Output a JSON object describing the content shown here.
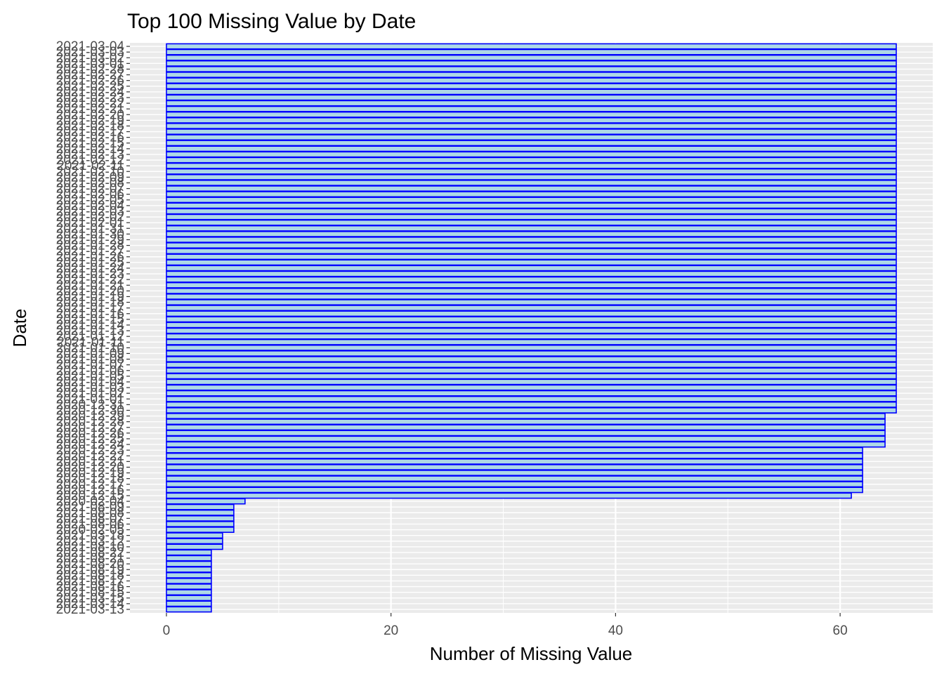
{
  "chart_data": {
    "type": "bar",
    "orientation": "horizontal",
    "title": "Top 100 Missing Value by Date",
    "xlabel": "Number of Missing Value",
    "ylabel": "Date",
    "xlim": [
      -3.25,
      68.25
    ],
    "x_ticks": [
      0,
      20,
      40,
      60
    ],
    "grid": true,
    "legend": "none",
    "colors": {
      "fill": "#add8e6",
      "outline": "#0000ff",
      "panel": "#ebebeb",
      "grid": "#ffffff"
    },
    "categories": [
      "2021-03-04",
      "2021-03-03",
      "2021-03-02",
      "2021-03-01",
      "2021-02-28",
      "2021-02-27",
      "2021-02-26",
      "2021-02-25",
      "2021-02-24",
      "2021-02-23",
      "2021-02-22",
      "2021-02-21",
      "2021-02-20",
      "2021-02-19",
      "2021-02-18",
      "2021-02-17",
      "2021-02-16",
      "2021-02-15",
      "2021-02-14",
      "2021-02-13",
      "2021-02-12",
      "2021-02-11",
      "2021-02-10",
      "2021-02-09",
      "2021-02-08",
      "2021-02-07",
      "2021-02-06",
      "2021-02-05",
      "2021-02-04",
      "2021-02-03",
      "2021-02-02",
      "2021-02-01",
      "2021-01-31",
      "2021-01-30",
      "2021-01-29",
      "2021-01-28",
      "2021-01-27",
      "2021-01-26",
      "2021-01-25",
      "2021-01-24",
      "2021-01-23",
      "2021-01-22",
      "2021-01-21",
      "2021-01-20",
      "2021-01-19",
      "2021-01-18",
      "2021-01-17",
      "2021-01-16",
      "2021-01-15",
      "2021-01-14",
      "2021-01-13",
      "2021-01-12",
      "2021-01-11",
      "2021-01-10",
      "2021-01-09",
      "2021-01-08",
      "2021-01-07",
      "2021-01-06",
      "2021-01-05",
      "2021-01-04",
      "2021-01-03",
      "2021-01-02",
      "2021-01-01",
      "2020-12-31",
      "2020-12-30",
      "2020-12-29",
      "2020-12-28",
      "2020-12-27",
      "2020-12-26",
      "2020-12-25",
      "2020-12-24",
      "2020-12-23",
      "2020-12-22",
      "2020-12-21",
      "2020-12-20",
      "2020-12-19",
      "2020-12-18",
      "2020-12-17",
      "2020-12-16",
      "2020-12-15",
      "2020-02-04",
      "2021-08-09",
      "2021-08-08",
      "2021-08-07",
      "2021-08-06",
      "2020-02-05",
      "2021-03-18",
      "2021-03-12",
      "2021-08-10",
      "2021-08-22",
      "2021-08-21",
      "2021-08-20",
      "2021-08-19",
      "2021-08-18",
      "2021-08-17",
      "2021-08-16",
      "2021-08-15",
      "2021-03-15",
      "2021-03-14",
      "2021-03-13"
    ],
    "values": [
      65,
      65,
      65,
      65,
      65,
      65,
      65,
      65,
      65,
      65,
      65,
      65,
      65,
      65,
      65,
      65,
      65,
      65,
      65,
      65,
      65,
      65,
      65,
      65,
      65,
      65,
      65,
      65,
      65,
      65,
      65,
      65,
      65,
      65,
      65,
      65,
      65,
      65,
      65,
      65,
      65,
      65,
      65,
      65,
      65,
      65,
      65,
      65,
      65,
      65,
      65,
      65,
      65,
      65,
      65,
      65,
      65,
      65,
      65,
      65,
      65,
      65,
      65,
      65,
      65,
      64,
      64,
      64,
      64,
      64,
      64,
      62,
      62,
      62,
      62,
      62,
      62,
      62,
      62,
      61,
      7,
      6,
      6,
      6,
      6,
      6,
      5,
      5,
      5,
      4,
      4,
      4,
      4,
      4,
      4,
      4,
      4,
      4,
      4,
      4
    ]
  }
}
